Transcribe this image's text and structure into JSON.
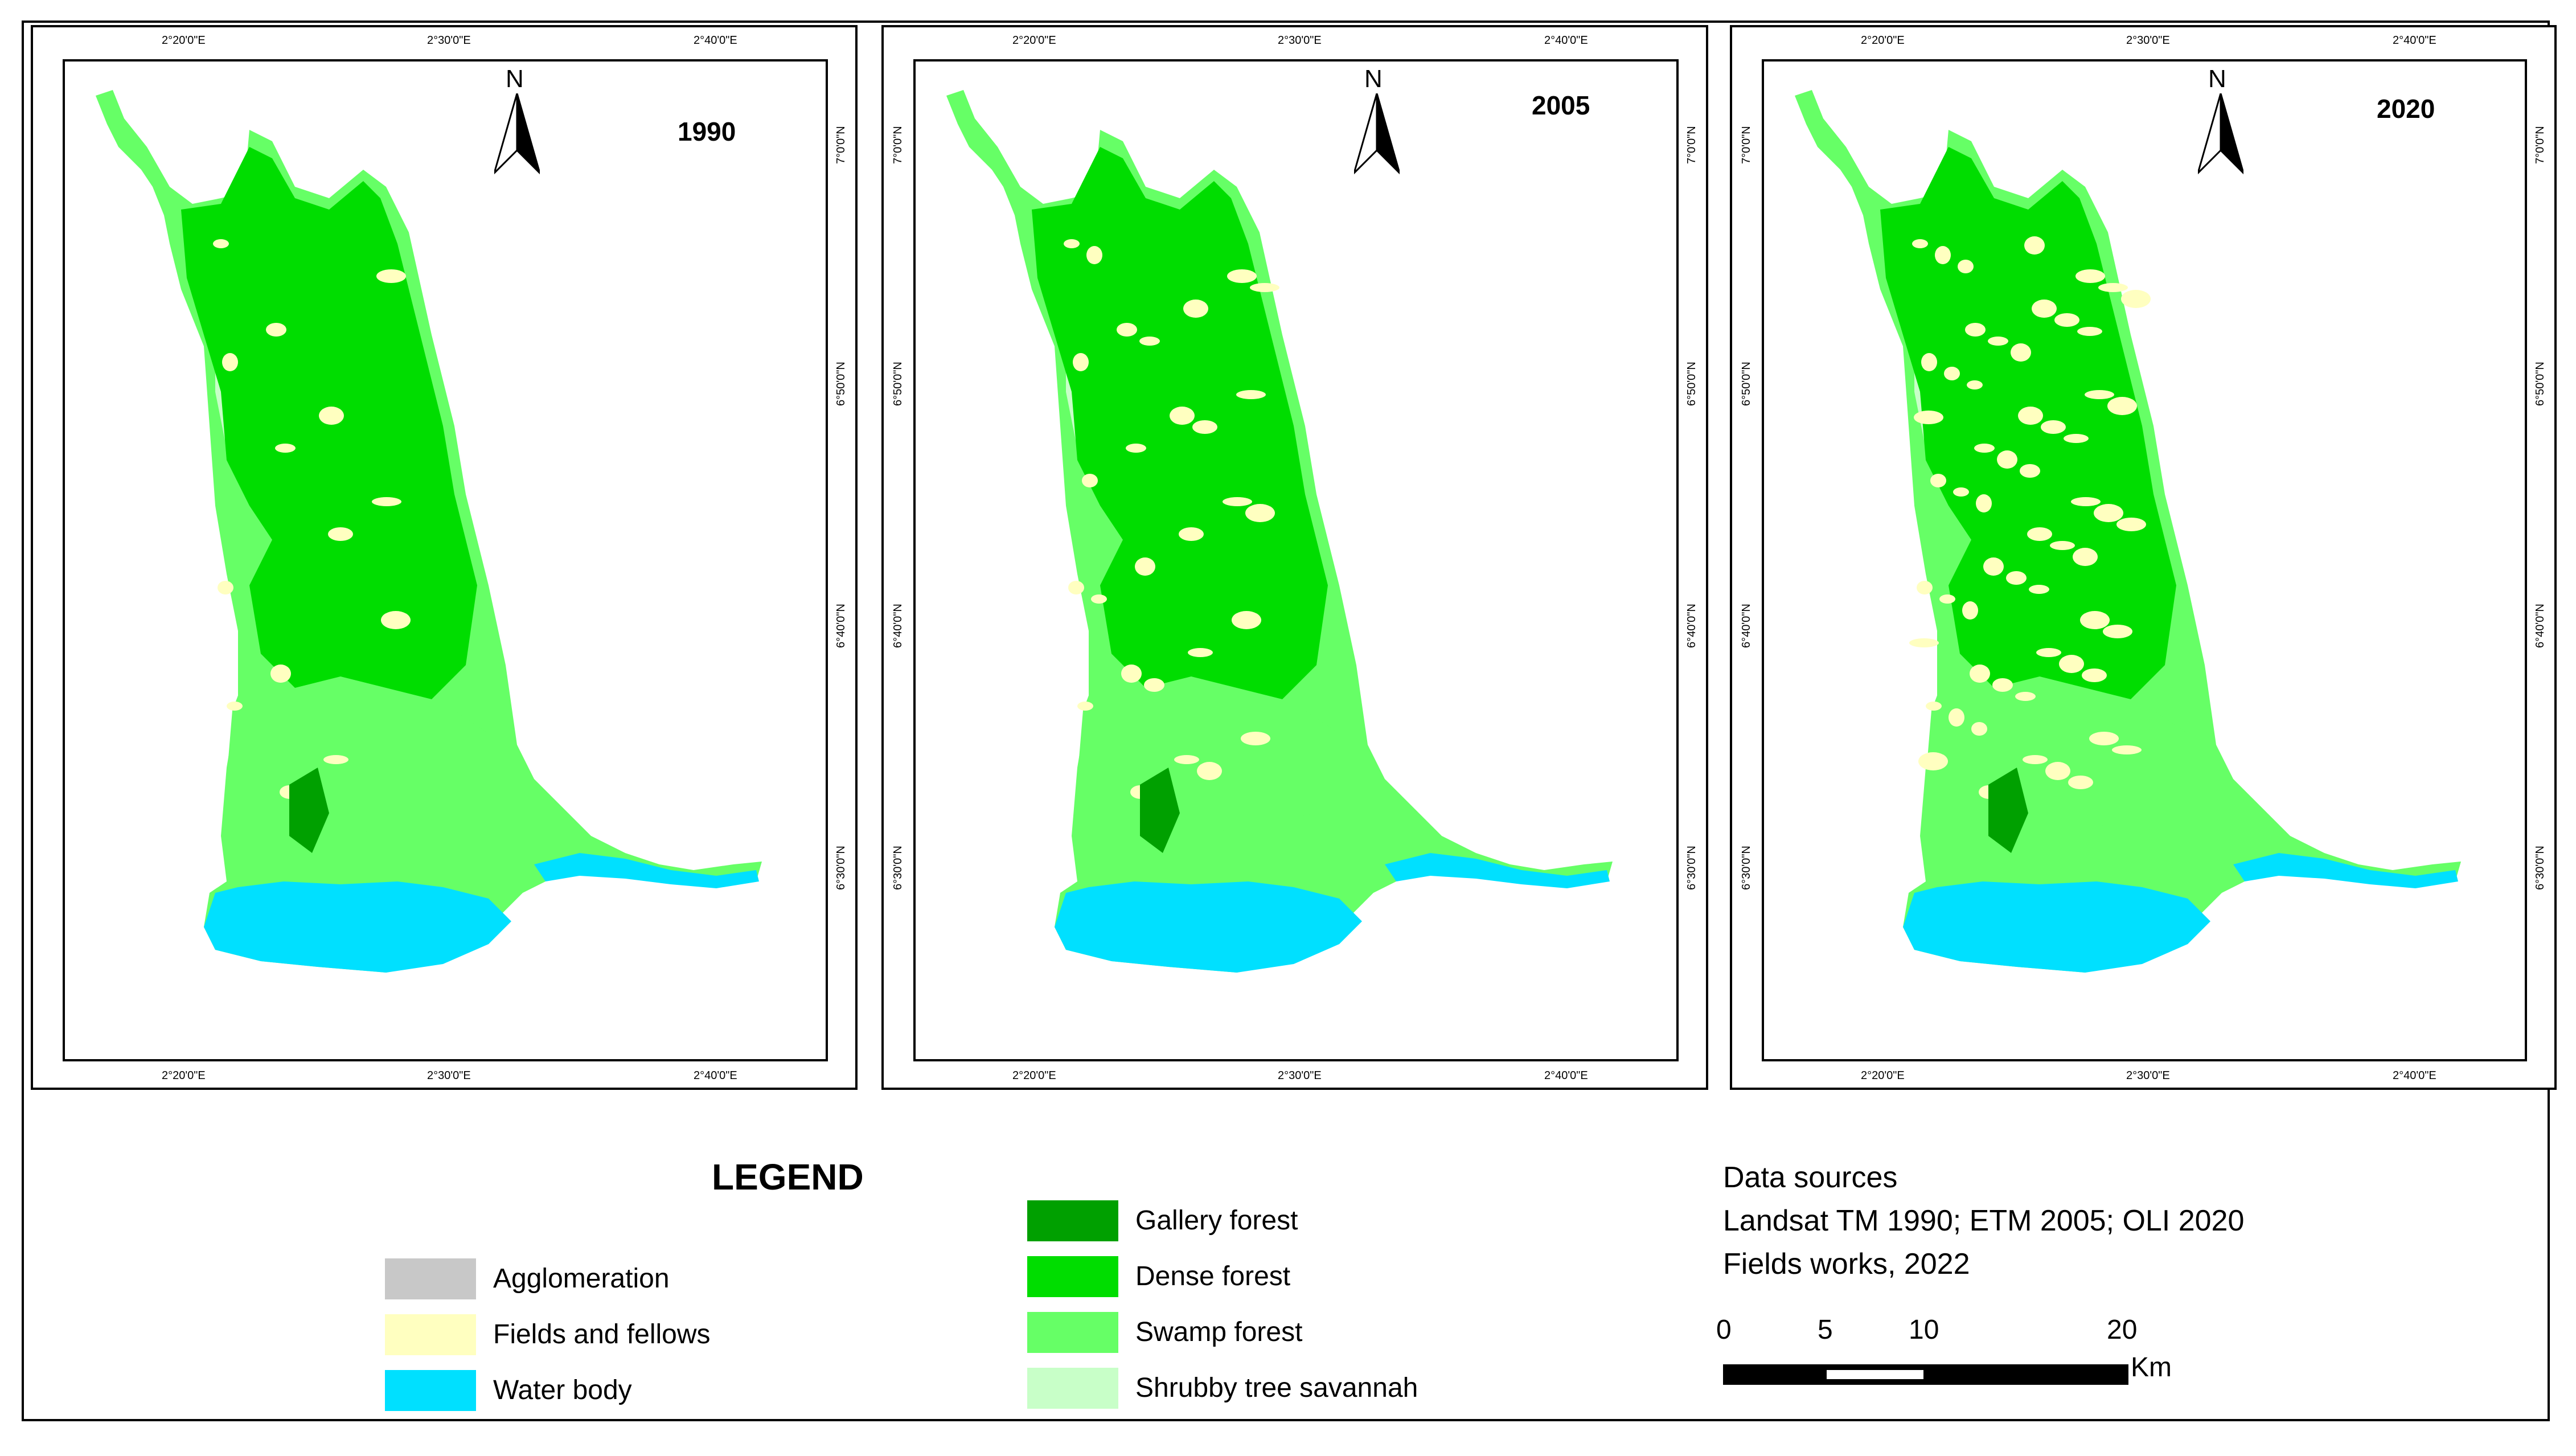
{
  "maps": [
    {
      "year": "1990",
      "top_lon": [
        "2°20'0\"E",
        "2°30'0\"E",
        "2°40'0\"E"
      ],
      "bottom_lon": [
        "2°20'0\"E",
        "2°30'0\"E",
        "2°40'0\"E"
      ],
      "right_lat": [
        "7°0'0\"N",
        "6°50'0\"N",
        "6°40'0\"N",
        "6°30'0\"N"
      ],
      "north": "N"
    },
    {
      "year": "2005",
      "top_lon": [
        "2°20'0\"E",
        "2°30'0\"E",
        "2°40'0\"E"
      ],
      "bottom_lon": [
        "2°20'0\"E",
        "2°30'0\"E",
        "2°40'0\"E"
      ],
      "left_lat": [
        "7°0'0\"N",
        "6°50'0\"N",
        "6°40'0\"N",
        "6°30'0\"N"
      ],
      "right_lat": [
        "7°0'0\"N",
        "6°50'0\"N",
        "6°40'0\"N",
        "6°30'0\"N"
      ],
      "north": "N"
    },
    {
      "year": "2020",
      "top_lon": [
        "2°20'0\"E",
        "2°30'0\"E",
        "2°40'0\"E"
      ],
      "bottom_lon": [
        "2°20'0\"E",
        "2°30'0\"E",
        "2°40'0\"E"
      ],
      "left_lat": [
        "7°0'0\"N",
        "6°50'0\"N",
        "6°40'0\"N",
        "6°30'0\"N"
      ],
      "right_lat": [
        "7°0'0\"N",
        "6°50'0\"N",
        "6°40'0\"N",
        "6°30'0\"N"
      ],
      "north": "N"
    }
  ],
  "legend": {
    "title": "LEGEND",
    "left_items": [
      {
        "label": "Agglomeration",
        "color": "#c8c8c8"
      },
      {
        "label": "Fields and fellows",
        "color": "#ffffc0"
      },
      {
        "label": "Water body",
        "color": "#00e0ff"
      }
    ],
    "right_items": [
      {
        "label": "Gallery forest",
        "color": "#00a000"
      },
      {
        "label": "Dense forest",
        "color": "#00dd00"
      },
      {
        "label": "Swamp forest",
        "color": "#66ff66"
      },
      {
        "label": "Shrubby tree savannah",
        "color": "#c8ffc8"
      }
    ]
  },
  "sources": {
    "heading": "Data sources",
    "line1": "Landsat TM 1990; ETM 2005; OLI 2020",
    "line2": "Fields works, 2022"
  },
  "scale": {
    "labels": [
      "0",
      "5",
      "10",
      "20"
    ],
    "unit": "Km"
  }
}
